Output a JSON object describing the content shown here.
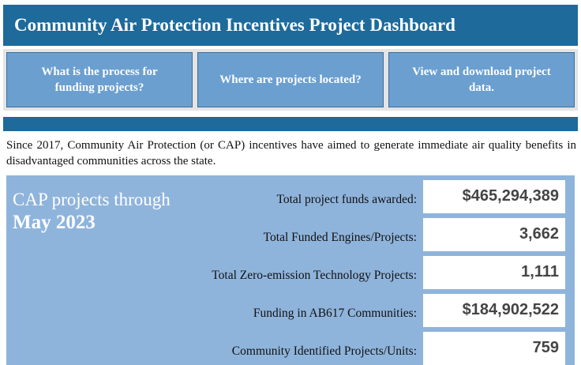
{
  "header": {
    "title": "Community Air Protection Incentives Project Dashboard"
  },
  "nav": {
    "buttons": [
      "What is the process for funding projects?",
      "Where are projects located?",
      "View and download project data."
    ]
  },
  "intro": "Since 2017, Community Air Protection (or CAP) incentives have aimed to generate immediate air quality benefits in disadvantaged communities across the state.",
  "panel": {
    "heading": "CAP projects through",
    "date": "May 2023",
    "stats": [
      {
        "label": "Total project funds awarded:",
        "value": "$465,294,389"
      },
      {
        "label": "Total Funded Engines/Projects:",
        "value": "3,662"
      },
      {
        "label": "Total Zero-emission Technology Projects:",
        "value": "1,111"
      },
      {
        "label": "Funding in AB617 Communities:",
        "value": "$184,902,522"
      },
      {
        "label": "Community Identified Projects/Units:",
        "value": "759"
      }
    ]
  }
}
